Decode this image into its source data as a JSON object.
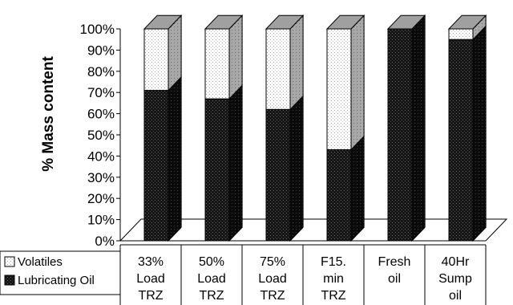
{
  "chart_data": {
    "type": "bar",
    "stacked": true,
    "three_d": true,
    "title": "",
    "xlabel": "",
    "ylabel": "% Mass content",
    "ylim": [
      0,
      100
    ],
    "y_ticks": [
      "0%",
      "10%",
      "20%",
      "30%",
      "40%",
      "50%",
      "60%",
      "70%",
      "80%",
      "90%",
      "100%"
    ],
    "categories": [
      [
        "33%",
        "Load",
        "TRZ"
      ],
      [
        "50%",
        "Load",
        "TRZ"
      ],
      [
        "75%",
        "Load",
        "TRZ"
      ],
      [
        "F15.",
        "min",
        "TRZ"
      ],
      [
        "Fresh",
        "oil"
      ],
      [
        "40Hr",
        "Sump",
        "oil"
      ]
    ],
    "series": [
      {
        "name": "Lubricating Oil",
        "values": [
          71,
          67,
          62,
          43,
          100,
          95
        ],
        "pattern": "dark-dotted",
        "color": "#1a1a1a"
      },
      {
        "name": "Volatiles",
        "values": [
          29,
          33,
          38,
          57,
          0,
          5
        ],
        "pattern": "light-dotted",
        "color": "#f4f4f4"
      }
    ],
    "grid": false,
    "legend_placement": "bottom-left"
  }
}
